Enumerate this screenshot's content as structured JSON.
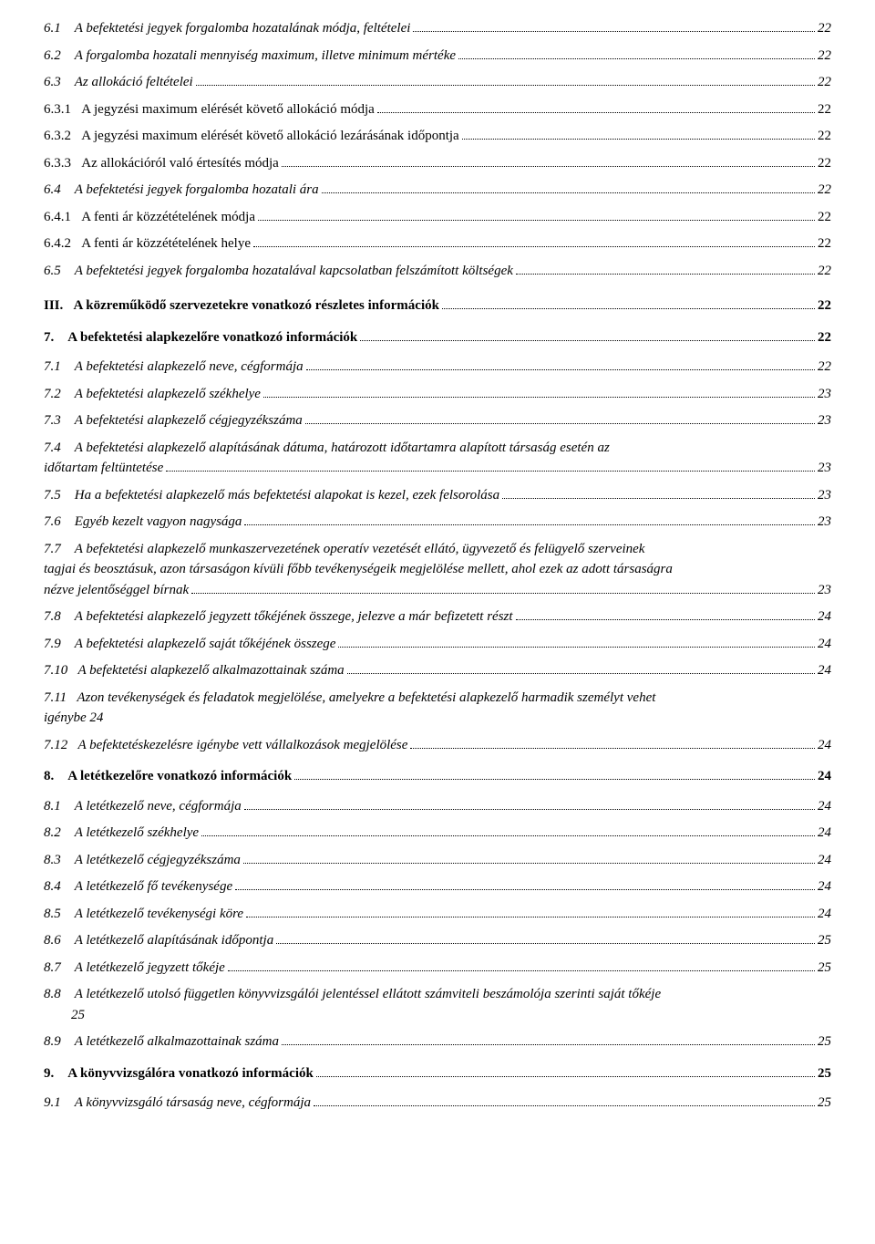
{
  "entries": [
    {
      "level": 3,
      "italic": true,
      "num": "6.1",
      "numPad": "    ",
      "title": "A befektetési jegyek forgalomba hozatalának módja, feltételei",
      "page": "22"
    },
    {
      "level": 3,
      "italic": true,
      "num": "6.2",
      "numPad": "    ",
      "title": "A forgalomba hozatali mennyiség maximum, illetve minimum mértéke",
      "page": "22"
    },
    {
      "level": 3,
      "italic": true,
      "num": "6.3",
      "numPad": "    ",
      "title": "Az allokáció feltételei",
      "page": "22"
    },
    {
      "level": 4,
      "italic": false,
      "num": "6.3.1",
      "numPad": "   ",
      "title": "A jegyzési maximum elérését követő allokáció módja",
      "page": "22"
    },
    {
      "level": 4,
      "italic": false,
      "num": "6.3.2",
      "numPad": "   ",
      "title": "A jegyzési maximum elérését követő allokáció lezárásának időpontja",
      "page": "22"
    },
    {
      "level": 4,
      "italic": false,
      "num": "6.3.3",
      "numPad": "   ",
      "title": "Az allokációról való értesítés módja",
      "page": "22"
    },
    {
      "level": 3,
      "italic": true,
      "num": "6.4",
      "numPad": "    ",
      "title": "A befektetési jegyek forgalomba hozatali ára",
      "page": "22"
    },
    {
      "level": 4,
      "italic": false,
      "num": "6.4.1",
      "numPad": "   ",
      "title": "A fenti ár közzétételének módja",
      "page": "22"
    },
    {
      "level": 4,
      "italic": false,
      "num": "6.4.2",
      "numPad": "   ",
      "title": "A fenti ár közzétételének helye",
      "page": "22"
    },
    {
      "level": 3,
      "italic": true,
      "num": "6.5",
      "numPad": "    ",
      "title": "A befektetési jegyek forgalomba hozatalával kapcsolatban felszámított költségek",
      "page": "22"
    },
    {
      "level": 1,
      "italic": false,
      "bold": true,
      "num": "III.",
      "numPad": "   ",
      "title": "A közreműködő szervezetekre vonatkozó részletes információk",
      "page": "22"
    },
    {
      "level": 2,
      "italic": false,
      "bold": true,
      "num": "7.",
      "numPad": "    ",
      "title": "A befektetési alapkezelőre vonatkozó információk",
      "page": "22"
    },
    {
      "level": 3,
      "italic": true,
      "num": "7.1",
      "numPad": "    ",
      "title": "A befektetési alapkezelő neve, cégformája",
      "page": "22"
    },
    {
      "level": 3,
      "italic": true,
      "num": "7.2",
      "numPad": "    ",
      "title": "A befektetési alapkezelő székhelye",
      "page": "23"
    },
    {
      "level": 3,
      "italic": true,
      "num": "7.3",
      "numPad": "    ",
      "title": "A befektetési alapkezelő cégjegyzékszáma",
      "page": "23"
    },
    {
      "level": 3,
      "italic": true,
      "multiline": true,
      "num": "7.4",
      "numPad": "    ",
      "titleLine1": "A befektetési alapkezelő alapításának dátuma, határozott időtartamra alapított társaság esetén az",
      "titleLine2": "időtartam feltüntetése",
      "page": "23"
    },
    {
      "level": 3,
      "italic": true,
      "num": "7.5",
      "numPad": "    ",
      "title": "Ha a befektetési alapkezelő más befektetési alapokat is kezel, ezek felsorolása",
      "page": "23"
    },
    {
      "level": 3,
      "italic": true,
      "num": "7.6",
      "numPad": "    ",
      "title": "Egyéb kezelt vagyon nagysága",
      "page": "23"
    },
    {
      "level": 3,
      "italic": true,
      "multiline": true,
      "lines": 3,
      "num": "7.7",
      "numPad": "    ",
      "titleLine1": "A befektetési alapkezelő munkaszervezetének operatív vezetését ellátó, ügyvezető és felügyelő szerveinek",
      "titleLine2": "tagjai és beosztásuk, azon társaságon kívüli főbb tevékenységeik megjelölése mellett, ahol ezek az adott társaságra",
      "titleLine3": "nézve jelentőséggel bírnak",
      "page": "23"
    },
    {
      "level": 3,
      "italic": true,
      "num": "7.8",
      "numPad": "    ",
      "title": "A befektetési alapkezelő jegyzett tőkéjének összege, jelezve a már befizetett részt",
      "page": "24"
    },
    {
      "level": 3,
      "italic": true,
      "num": "7.9",
      "numPad": "    ",
      "title": "A befektetési alapkezelő saját tőkéjének összege",
      "page": "24"
    },
    {
      "level": 3,
      "italic": true,
      "num": "7.10",
      "numPad": "   ",
      "title": "A befektetési alapkezelő alkalmazottainak száma",
      "page": "24"
    },
    {
      "level": 3,
      "italic": true,
      "multiline": true,
      "num": "7.11",
      "numPad": "   ",
      "titleLine1": "Azon tevékenységek és feladatok megjelölése, amelyekre a befektetési alapkezelő harmadik személyt vehet",
      "titleLine2": "igénybe 24",
      "noPage": true
    },
    {
      "level": 3,
      "italic": true,
      "num": "7.12",
      "numPad": "   ",
      "title": "A befektetéskezelésre igénybe vett vállalkozások megjelölése",
      "page": "24"
    },
    {
      "level": 2,
      "italic": false,
      "bold": true,
      "num": "8.",
      "numPad": "    ",
      "title": "A letétkezelőre vonatkozó információk",
      "page": "24"
    },
    {
      "level": 3,
      "italic": true,
      "num": "8.1",
      "numPad": "    ",
      "title": "A letétkezelő neve, cégformája",
      "page": "24"
    },
    {
      "level": 3,
      "italic": true,
      "num": "8.2",
      "numPad": "    ",
      "title": "A letétkezelő székhelye",
      "page": "24"
    },
    {
      "level": 3,
      "italic": true,
      "num": "8.3",
      "numPad": "    ",
      "title": "A letétkezelő cégjegyzékszáma",
      "page": "24"
    },
    {
      "level": 3,
      "italic": true,
      "num": "8.4",
      "numPad": "    ",
      "title": "A letétkezelő fő tevékenysége",
      "page": "24"
    },
    {
      "level": 3,
      "italic": true,
      "num": "8.5",
      "numPad": "    ",
      "title": "A letétkezelő tevékenységi köre",
      "page": "24"
    },
    {
      "level": 3,
      "italic": true,
      "num": "8.6",
      "numPad": "    ",
      "title": "A letétkezelő alapításának időpontja",
      "page": "25"
    },
    {
      "level": 3,
      "italic": true,
      "num": "8.7",
      "numPad": "    ",
      "title": "A letétkezelő jegyzett tőkéje",
      "page": "25"
    },
    {
      "level": 3,
      "italic": true,
      "multiline": true,
      "num": "8.8",
      "numPad": "    ",
      "titleLine1": "A letétkezelő utolsó független könyvvizsgálói jelentéssel ellátott számviteli beszámolója szerinti saját tőkéje",
      "titleLine2": "        25",
      "noPage": true,
      "indentLine2": true
    },
    {
      "level": 3,
      "italic": true,
      "num": "8.9",
      "numPad": "    ",
      "title": "A letétkezelő alkalmazottainak száma",
      "page": "25"
    },
    {
      "level": 2,
      "italic": false,
      "bold": true,
      "num": "9.",
      "numPad": "    ",
      "title": "A könyvvizsgálóra vonatkozó információk",
      "page": "25"
    },
    {
      "level": 3,
      "italic": true,
      "num": "9.1",
      "numPad": "    ",
      "title": "A könyvvizsgáló társaság neve, cégformája",
      "page": "25"
    }
  ]
}
